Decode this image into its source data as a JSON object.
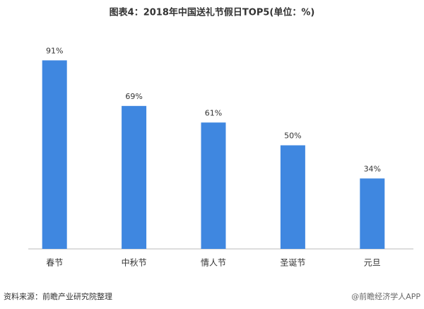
{
  "chart_data": {
    "type": "bar",
    "title": "图表4：2018年中国送礼节假日TOP5(单位：%)",
    "categories": [
      "春节",
      "中秋节",
      "情人节",
      "圣诞节",
      "元旦"
    ],
    "values": [
      91,
      69,
      61,
      50,
      34
    ],
    "value_labels": [
      "91%",
      "69%",
      "61%",
      "50%",
      "34%"
    ],
    "color": "#3f87e0",
    "ylim": [
      0,
      100
    ],
    "grid": false
  },
  "footer": {
    "source": "资料来源：前瞻产业研究院整理",
    "brand": "@前瞻经济学人APP"
  }
}
